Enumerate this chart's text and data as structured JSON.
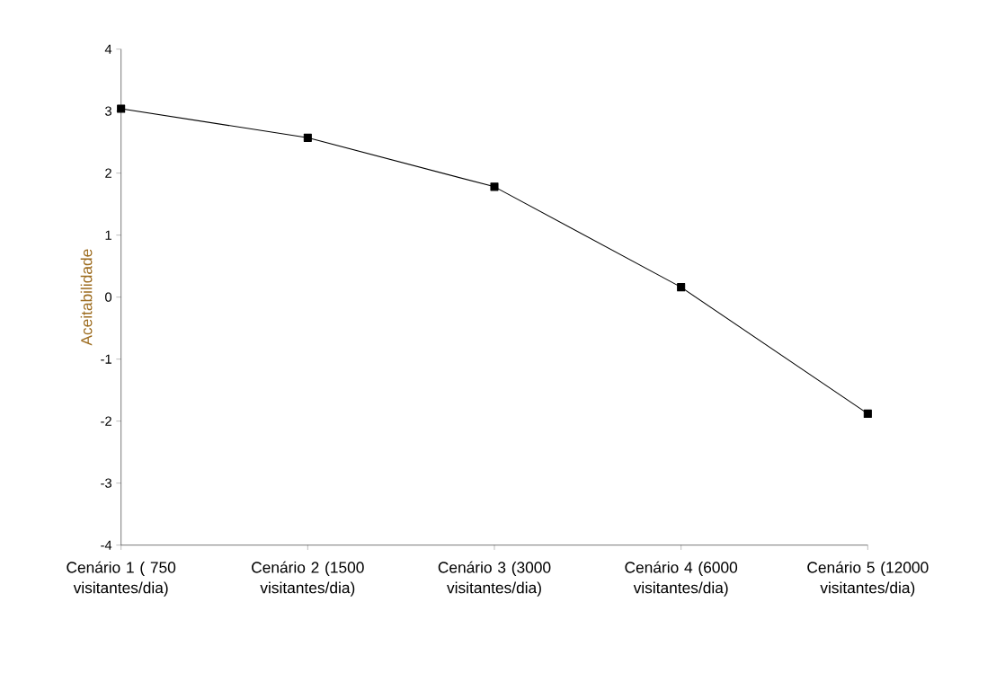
{
  "chart_data": {
    "type": "line",
    "ylabel": "Aceitabilidade",
    "categories": [
      "Cenário 1 ( 750 visitantes/dia)",
      "Cenário 2 (1500 visitantes/dia)",
      "Cenário 3 (3000 visitantes/dia)",
      "Cenário 4 (6000 visitantes/dia)",
      "Cenário 5 (12000 visitantes/dia)"
    ],
    "values": [
      3.04,
      2.57,
      1.78,
      0.16,
      -1.88
    ],
    "color": "#000000",
    "marker": "square",
    "line_style": "solid",
    "ylim": [
      -4,
      4
    ],
    "yticks": [
      -4,
      -3,
      -2,
      -1,
      0,
      1,
      2,
      3,
      4
    ],
    "grid": false
  }
}
